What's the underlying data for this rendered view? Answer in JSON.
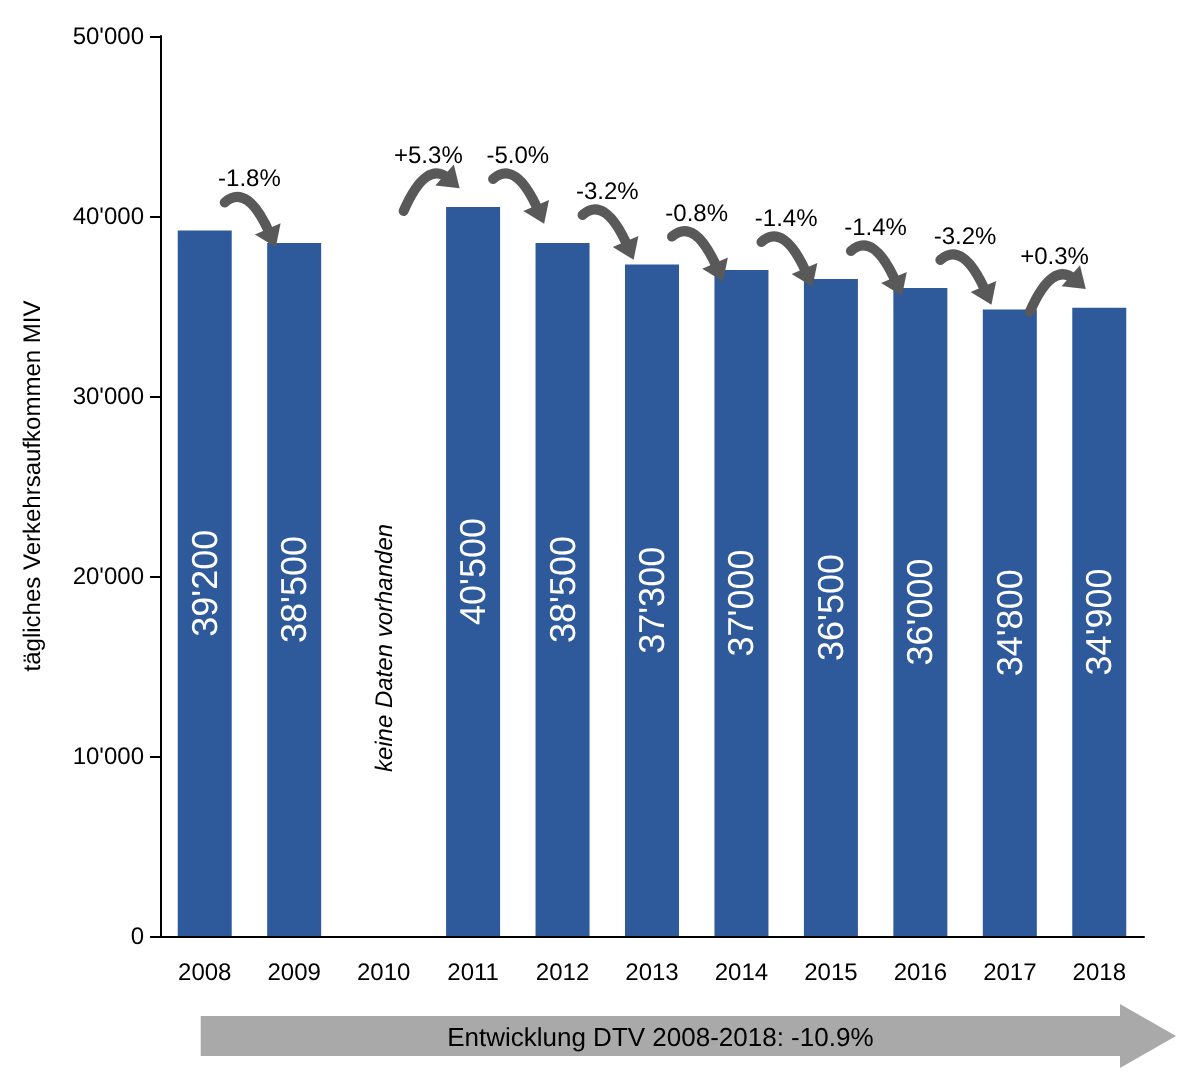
{
  "chart_data": {
    "type": "bar",
    "ylabel": "tägliches Verkehrsaufkommen MIV",
    "categories": [
      "2008",
      "2009",
      "2010",
      "2011",
      "2012",
      "2013",
      "2014",
      "2015",
      "2016",
      "2017",
      "2018"
    ],
    "values": [
      39200,
      38500,
      null,
      40500,
      38500,
      37300,
      37000,
      36500,
      36000,
      34800,
      34900
    ],
    "value_labels": [
      "39'200",
      "38'500",
      null,
      "40'500",
      "38'500",
      "37'300",
      "37'000",
      "36'500",
      "36'000",
      "34'800",
      "34'900"
    ],
    "color": "#2e5a9b",
    "ylim": [
      0,
      50000
    ],
    "yticks": [
      {
        "value": 0,
        "label": "0"
      },
      {
        "value": 10000,
        "label": "10'000"
      },
      {
        "value": 20000,
        "label": "20'000"
      },
      {
        "value": 30000,
        "label": "30'000"
      },
      {
        "value": 40000,
        "label": "40'000"
      },
      {
        "value": 50000,
        "label": "50'000"
      }
    ],
    "grid": false,
    "annotations": [
      "-1.8%",
      "+5.3%",
      "-5.0%",
      "-3.2%",
      "-0.8%",
      "-1.4%",
      "-1.4%",
      "-3.2%",
      "+0.3%",
      "keine Daten vorhanden",
      "Entwicklung DTV 2008-2018: -10.9%"
    ]
  }
}
